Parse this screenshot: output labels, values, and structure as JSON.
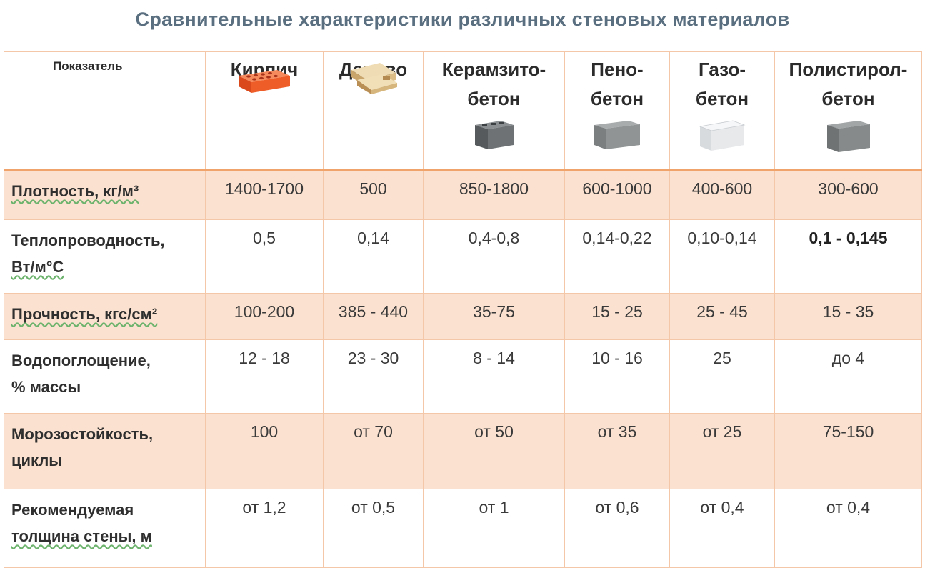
{
  "title": "Сравнительные характеристики различных стеновых материалов",
  "header": {
    "param_label": "Показатель",
    "materials": [
      {
        "line1": "Кирпич",
        "line2": "",
        "icon": "brick-icon"
      },
      {
        "line1": "Дерево",
        "line2": "",
        "icon": "timber-icon"
      },
      {
        "line1": "Керамзито-",
        "line2": "бетон",
        "icon": "hollow-block-icon"
      },
      {
        "line1": "Пено-",
        "line2": "бетон",
        "icon": "foam-block-icon"
      },
      {
        "line1": "Газо-",
        "line2": "бетон",
        "icon": "aerated-block-icon"
      },
      {
        "line1": "Полистирол-",
        "line2": "бетон",
        "icon": "polystyrene-block-icon"
      }
    ]
  },
  "rows": [
    {
      "label_line1": "Плотность, кг/м³",
      "label_line2": "",
      "values": [
        "1400-1700",
        "500",
        "850-1800",
        "600-1000",
        "400-600",
        "300-600"
      ]
    },
    {
      "label_line1": "Теплопроводность,",
      "label_line2": "Вт/м°С",
      "values": [
        "0,5",
        "0,14",
        "0,4-0,8",
        "0,14-0,22",
        "0,10-0,14",
        "0,1 - 0,145"
      ]
    },
    {
      "label_line1": "Прочность, кгс/см²",
      "label_line2": "",
      "values": [
        "100-200",
        "385 - 440",
        "35-75",
        "15 - 25",
        "25 - 45",
        "15 - 35"
      ]
    },
    {
      "label_line1": "Водопоглощение,",
      "label_line2": "% массы",
      "values": [
        "12 - 18",
        "23 - 30",
        "8 - 14",
        "10 - 16",
        "25",
        "до 4"
      ]
    },
    {
      "label_line1": "Морозостойкость,",
      "label_line2": "циклы",
      "values": [
        "100",
        "от 70",
        "от 50",
        "от 35",
        "от 25",
        "75-150"
      ]
    },
    {
      "label_line1": "Рекомендуемая",
      "label_line2": "толщина стены, м",
      "values": [
        "от 1,2",
        "от 0,5",
        "от 1",
        "от 0,6",
        "от 0,4",
        "от 0,4"
      ]
    }
  ],
  "colors": {
    "title": "#5a6f80",
    "shade": "#fbe1cf",
    "border": "#f3c7a7",
    "header_rule": "#f0a46c",
    "brick": "#f0602a"
  }
}
